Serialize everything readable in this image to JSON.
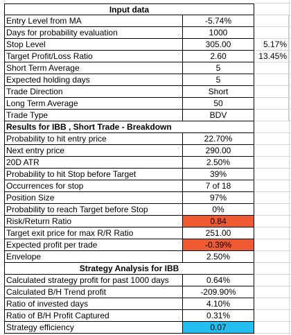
{
  "input_section": {
    "title": "Input data",
    "rows": [
      {
        "label": "Entry Level from MA",
        "value": "-5.74%",
        "extra": ""
      },
      {
        "label": "Days for probability evaluation",
        "value": "1000",
        "extra": ""
      },
      {
        "label": "Stop Level",
        "value": "305.00",
        "extra": "5.17%"
      },
      {
        "label": "Target Profit/Loss Ratio",
        "value": "2.60",
        "extra": "13.45%"
      },
      {
        "label": "Short Term Average",
        "value": "5",
        "extra": ""
      },
      {
        "label": "Expected holding days",
        "value": "5",
        "extra": ""
      },
      {
        "label": "Trade Direction",
        "value": "Short",
        "extra": ""
      },
      {
        "label": "Long Term Average",
        "value": "50",
        "extra": ""
      },
      {
        "label": "Trade Type",
        "value": "BDV",
        "extra": ""
      }
    ]
  },
  "results_section": {
    "title": "Results for IBB , Short Trade - Breakdown",
    "rows": [
      {
        "label": "Probability to hit entry price",
        "value": "22.70%",
        "highlight": ""
      },
      {
        "label": "Next entry price",
        "value": "290.00",
        "highlight": ""
      },
      {
        "label": "20D ATR",
        "value": "2.50%",
        "highlight": ""
      },
      {
        "label": "Probability to hit Stop before Target",
        "value": "39%",
        "highlight": ""
      },
      {
        "label": "Occurrences for stop",
        "value": "7 of 18",
        "highlight": ""
      },
      {
        "label": "Position Size",
        "value": "97%",
        "highlight": ""
      },
      {
        "label": "Probability to reach Target before Stop",
        "value": "0%",
        "highlight": ""
      },
      {
        "label": "Risk/Return Ratio",
        "value": "0.84",
        "highlight": "#f05a32"
      },
      {
        "label": "Target exit price for max R/R Ratio",
        "value": "251.00",
        "highlight": ""
      },
      {
        "label": "Expected profit per trade",
        "value": "-0.39%",
        "highlight": "#f05a32"
      },
      {
        "label": "Envelope",
        "value": "2.50%",
        "highlight": ""
      }
    ]
  },
  "strategy_section": {
    "title": "Strategy Analysis for IBB",
    "rows": [
      {
        "label": "Calculated strategy profit for past 1000 days",
        "value": "0.64%",
        "highlight": ""
      },
      {
        "label": "Calculated B/H Trend profit",
        "value": "-209.90%",
        "highlight": ""
      },
      {
        "label": "Ratio of invested days",
        "value": "4.10%",
        "highlight": ""
      },
      {
        "label": "Ratio of B/H Profit Captured",
        "value": "0.31%",
        "highlight": ""
      },
      {
        "label": "Strategy efficiency",
        "value": "0.07",
        "highlight": "#22bff0"
      }
    ]
  }
}
